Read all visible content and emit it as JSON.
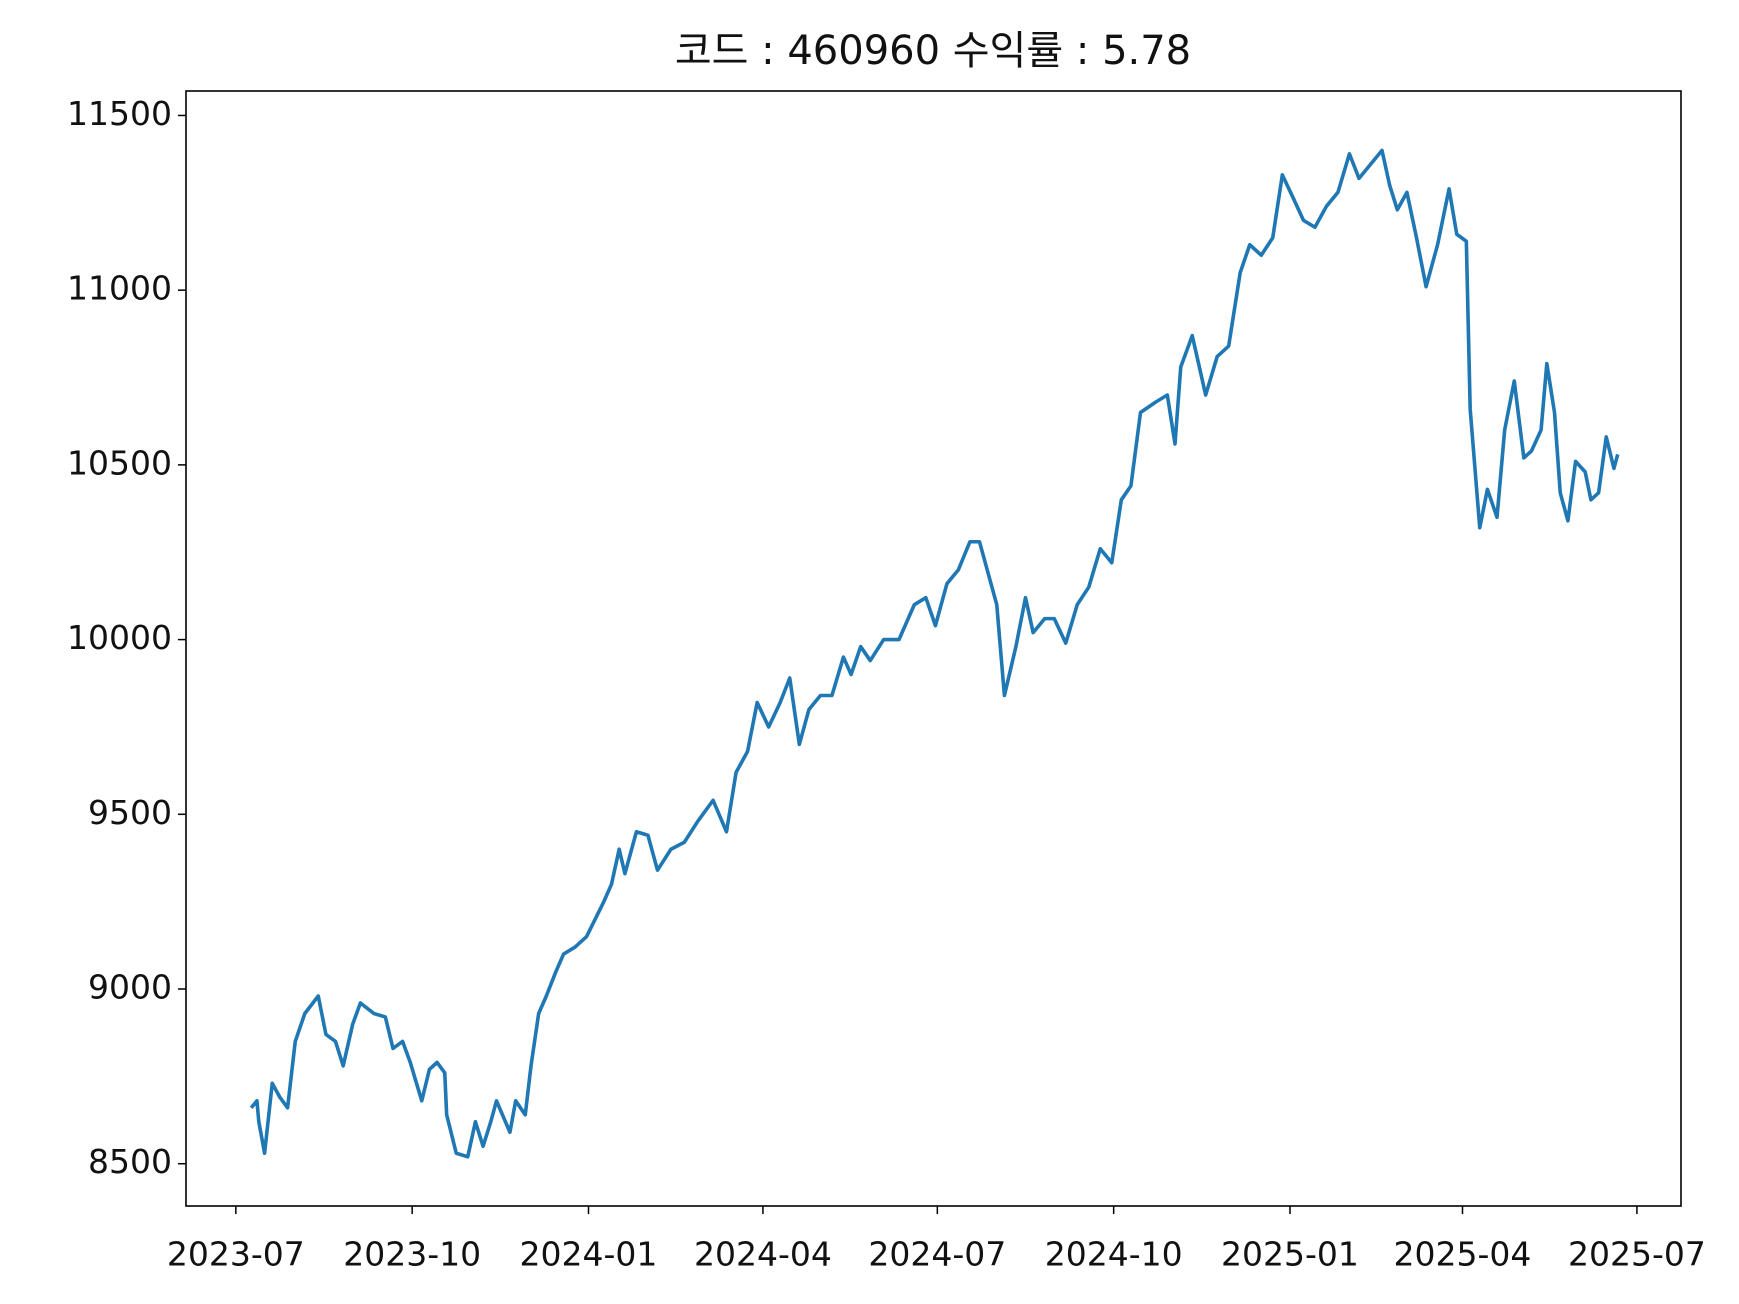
{
  "chart_data": {
    "type": "line",
    "title": "코드 : 460960 수익률 : 5.78",
    "x": [
      "2023-07-09",
      "2023-07-12",
      "2023-07-13",
      "2023-07-16",
      "2023-07-20",
      "2023-07-24",
      "2023-07-28",
      "2023-08-01",
      "2023-08-06",
      "2023-08-13",
      "2023-08-17",
      "2023-08-22",
      "2023-08-26",
      "2023-08-31",
      "2023-09-04",
      "2023-09-11",
      "2023-09-17",
      "2023-09-21",
      "2023-09-26",
      "2023-09-30",
      "2023-10-06",
      "2023-10-10",
      "2023-10-14",
      "2023-10-18",
      "2023-10-19",
      "2023-10-24",
      "2023-10-30",
      "2023-11-03",
      "2023-11-07",
      "2023-11-11",
      "2023-11-14",
      "2023-11-21",
      "2023-11-24",
      "2023-11-29",
      "2023-12-02",
      "2023-12-06",
      "2023-12-10",
      "2023-12-15",
      "2023-12-19",
      "2023-12-25",
      "2023-12-31",
      "2024-01-09",
      "2024-01-13",
      "2024-01-17",
      "2024-01-20",
      "2024-01-26",
      "2024-02-01",
      "2024-02-06",
      "2024-02-13",
      "2024-02-20",
      "2024-02-27",
      "2024-03-06",
      "2024-03-13",
      "2024-03-18",
      "2024-03-24",
      "2024-03-29",
      "2024-04-04",
      "2024-04-10",
      "2024-04-15",
      "2024-04-20",
      "2024-04-25",
      "2024-05-01",
      "2024-05-07",
      "2024-05-13",
      "2024-05-17",
      "2024-05-22",
      "2024-05-27",
      "2024-06-03",
      "2024-06-11",
      "2024-06-19",
      "2024-06-25",
      "2024-06-30",
      "2024-07-06",
      "2024-07-12",
      "2024-07-18",
      "2024-07-23",
      "2024-07-28",
      "2024-08-01",
      "2024-08-05",
      "2024-08-11",
      "2024-08-16",
      "2024-08-20",
      "2024-08-26",
      "2024-08-31",
      "2024-09-06",
      "2024-09-12",
      "2024-09-18",
      "2024-09-24",
      "2024-09-30",
      "2024-10-05",
      "2024-10-10",
      "2024-10-15",
      "2024-10-23",
      "2024-10-29",
      "2024-11-02",
      "2024-11-05",
      "2024-11-11",
      "2024-11-18",
      "2024-11-24",
      "2024-11-30",
      "2024-12-06",
      "2024-12-11",
      "2024-12-17",
      "2024-12-23",
      "2024-12-28",
      "2025-01-03",
      "2025-01-08",
      "2025-01-14",
      "2025-01-20",
      "2025-01-26",
      "2025-02-01",
      "2025-02-06",
      "2025-02-12",
      "2025-02-18",
      "2025-02-22",
      "2025-02-26",
      "2025-03-03",
      "2025-03-08",
      "2025-03-13",
      "2025-03-19",
      "2025-03-25",
      "2025-03-29",
      "2025-04-03",
      "2025-04-05",
      "2025-04-10",
      "2025-04-14",
      "2025-04-19",
      "2025-04-23",
      "2025-04-28",
      "2025-05-03",
      "2025-05-07",
      "2025-05-12",
      "2025-05-15",
      "2025-05-19",
      "2025-05-22",
      "2025-05-26",
      "2025-05-30",
      "2025-06-04",
      "2025-06-07",
      "2025-06-11",
      "2025-06-15",
      "2025-06-19",
      "2025-06-21"
    ],
    "series": [
      {
        "color": "#1f77b4",
        "values": [
          8660,
          8680,
          8620,
          8530,
          8730,
          8690,
          8660,
          8850,
          8930,
          8980,
          8870,
          8850,
          8780,
          8900,
          8960,
          8930,
          8920,
          8830,
          8850,
          8790,
          8680,
          8770,
          8790,
          8760,
          8640,
          8530,
          8520,
          8620,
          8550,
          8620,
          8680,
          8590,
          8680,
          8640,
          8780,
          8930,
          8980,
          9050,
          9100,
          9120,
          9150,
          9250,
          9300,
          9400,
          9330,
          9450,
          9440,
          9340,
          9400,
          9420,
          9480,
          9540,
          9450,
          9620,
          9680,
          9820,
          9750,
          9820,
          9890,
          9700,
          9800,
          9840,
          9840,
          9950,
          9900,
          9980,
          9940,
          10000,
          10000,
          10100,
          10120,
          10040,
          10160,
          10200,
          10280,
          10280,
          10180,
          10100,
          9840,
          9980,
          10120,
          10020,
          10060,
          10060,
          9990,
          10100,
          10150,
          10260,
          10220,
          10400,
          10440,
          10650,
          10680,
          10700,
          10560,
          10780,
          10870,
          10700,
          10810,
          10840,
          11050,
          11130,
          11100,
          11150,
          11330,
          11260,
          11200,
          11180,
          11240,
          11280,
          11390,
          11320,
          11360,
          11400,
          11300,
          11230,
          11280,
          11150,
          11010,
          11130,
          11290,
          11160,
          11140,
          10660,
          10320,
          10430,
          10350,
          10600,
          10740,
          10520,
          10540,
          10600,
          10790,
          10650,
          10420,
          10340,
          10510,
          10480,
          10400,
          10420,
          10580,
          10490,
          10530
        ]
      }
    ],
    "xlim": [
      "2023-06-05",
      "2025-07-24"
    ],
    "xticks": [
      "2023-07",
      "2023-10",
      "2024-01",
      "2024-04",
      "2024-07",
      "2024-10",
      "2025-01",
      "2025-04",
      "2025-07"
    ],
    "ylim": [
      8379,
      11570
    ],
    "yticks": [
      8500,
      9000,
      9500,
      10000,
      10500,
      11000,
      11500
    ],
    "grid": false
  }
}
